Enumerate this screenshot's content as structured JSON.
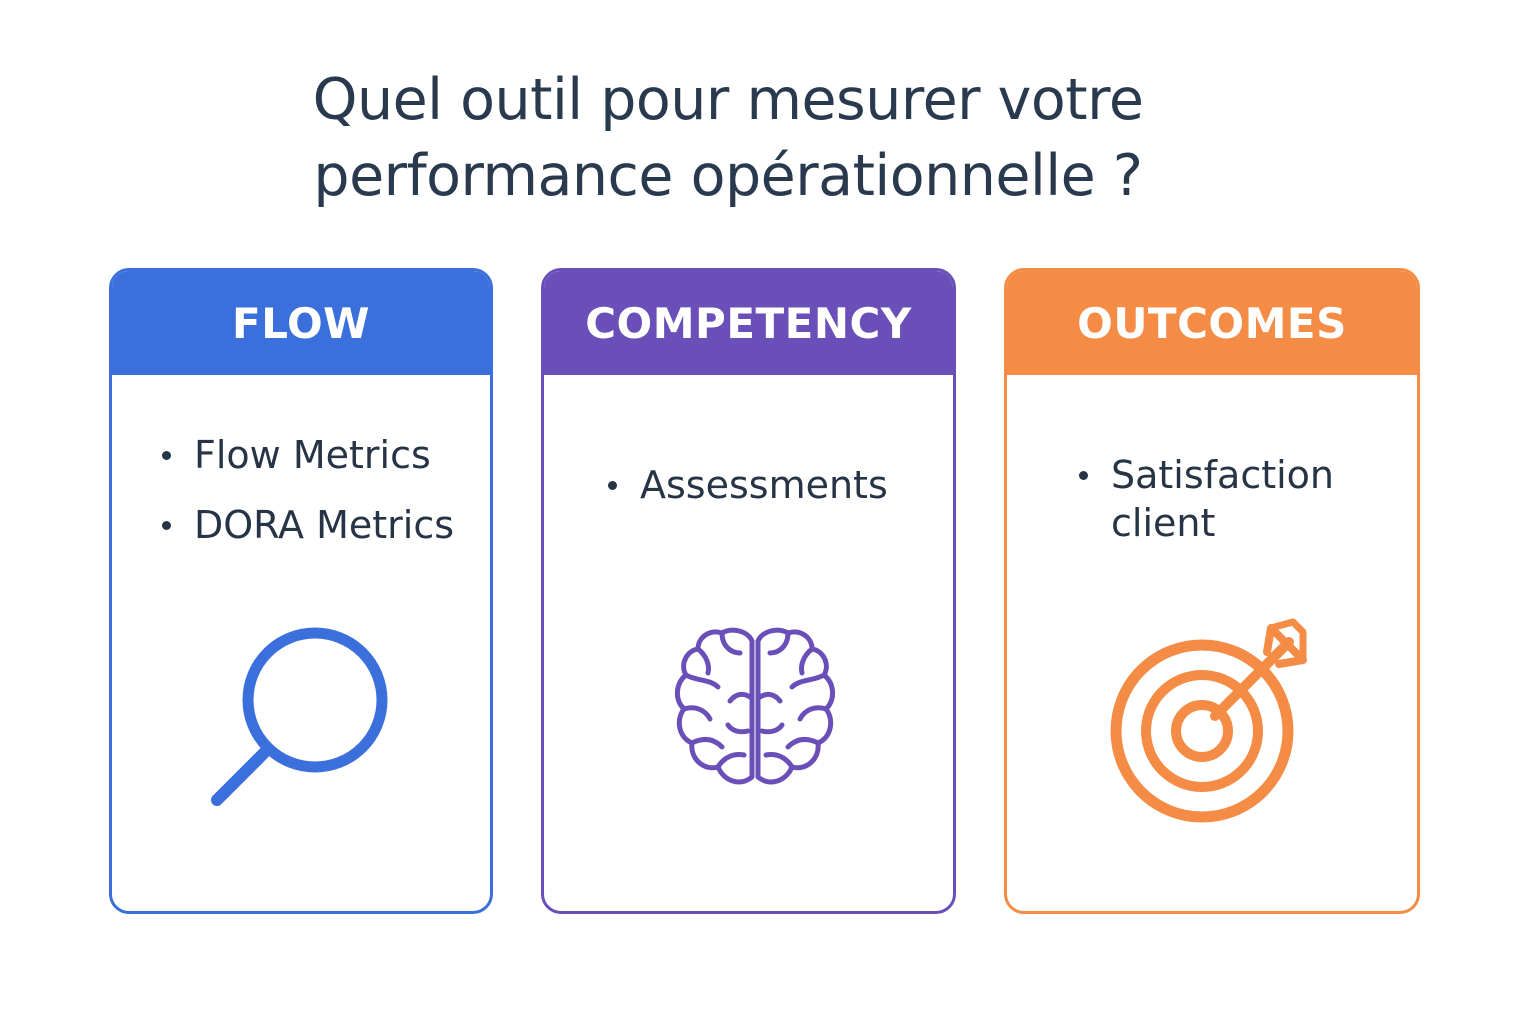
{
  "title": {
    "line1": "Quel outil pour mesurer votre",
    "line2": "performance opérationnelle ?"
  },
  "cards": [
    {
      "header": "FLOW",
      "color": "#3a6fdc",
      "items": [
        "Flow Metrics",
        "DORA Metrics"
      ],
      "icon": "magnifying-glass-icon"
    },
    {
      "header": "COMPETENCY",
      "color": "#6a4fb8",
      "items": [
        "Assessments"
      ],
      "icon": "brain-icon"
    },
    {
      "header": "OUTCOMES",
      "color": "#f48c45",
      "items": [
        "Satisfaction client"
      ],
      "icon": "target-arrow-icon"
    }
  ]
}
